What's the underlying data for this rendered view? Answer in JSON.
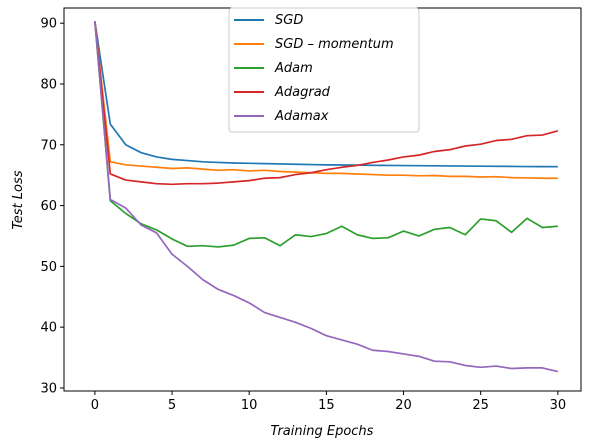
{
  "chart_data": {
    "type": "line",
    "xlabel": "Training Epochs",
    "ylabel": "Test Loss",
    "xlim": [
      -2,
      31.5
    ],
    "ylim": [
      29.5,
      92.5
    ],
    "xticks": [
      0,
      5,
      10,
      15,
      20,
      25,
      30
    ],
    "yticks": [
      30,
      40,
      50,
      60,
      70,
      80,
      90
    ],
    "grid": false,
    "legend_position": "top-center",
    "x": [
      0,
      1,
      2,
      3,
      4,
      5,
      6,
      7,
      8,
      9,
      10,
      11,
      12,
      13,
      14,
      15,
      16,
      17,
      18,
      19,
      20,
      21,
      22,
      23,
      24,
      25,
      26,
      27,
      28,
      29,
      30
    ],
    "series": [
      {
        "name": "SGD",
        "color": "#1f77b4",
        "values": [
          90.3,
          73.4,
          70.0,
          68.7,
          68.0,
          67.6,
          67.4,
          67.2,
          67.1,
          67.0,
          66.95,
          66.9,
          66.85,
          66.8,
          66.75,
          66.7,
          66.68,
          66.65,
          66.62,
          66.6,
          66.58,
          66.56,
          66.54,
          66.52,
          66.5,
          66.48,
          66.46,
          66.44,
          66.42,
          66.41,
          66.4
        ]
      },
      {
        "name": "SGD – momentum",
        "color": "#ff7f0e",
        "values": [
          90.3,
          67.2,
          66.7,
          66.5,
          66.3,
          66.1,
          66.2,
          66.0,
          65.8,
          65.9,
          65.7,
          65.8,
          65.6,
          65.5,
          65.4,
          65.3,
          65.3,
          65.2,
          65.1,
          65.0,
          65.0,
          64.9,
          64.95,
          64.8,
          64.8,
          64.7,
          64.75,
          64.6,
          64.55,
          64.5,
          64.5
        ]
      },
      {
        "name": "Adam",
        "color": "#2ca02c",
        "values": [
          90.3,
          60.8,
          58.7,
          57.0,
          56.0,
          54.5,
          53.3,
          53.4,
          53.2,
          53.5,
          54.6,
          54.7,
          53.4,
          55.2,
          54.9,
          55.4,
          56.6,
          55.2,
          54.6,
          54.7,
          55.8,
          55.0,
          56.1,
          56.4,
          55.2,
          57.8,
          57.5,
          55.6,
          57.9,
          56.4,
          56.6
        ]
      },
      {
        "name": "Adagrad",
        "color": "#d62728",
        "values": [
          90.3,
          65.2,
          64.2,
          63.9,
          63.6,
          63.5,
          63.6,
          63.6,
          63.7,
          63.9,
          64.1,
          64.5,
          64.6,
          65.1,
          65.4,
          65.9,
          66.3,
          66.6,
          67.1,
          67.5,
          68.0,
          68.3,
          68.9,
          69.2,
          69.8,
          70.1,
          70.7,
          70.9,
          71.5,
          71.6,
          72.3
        ]
      },
      {
        "name": "Adamax",
        "color": "#9467bd",
        "values": [
          90.3,
          61.0,
          59.6,
          56.8,
          55.5,
          52.0,
          50.0,
          47.8,
          46.2,
          45.2,
          44.0,
          42.4,
          41.6,
          40.8,
          39.8,
          38.6,
          37.9,
          37.2,
          36.2,
          36.0,
          35.6,
          35.2,
          34.4,
          34.3,
          33.7,
          33.4,
          33.6,
          33.2,
          33.3,
          33.3,
          32.7
        ]
      }
    ]
  },
  "legend": {
    "items": [
      {
        "label": "SGD",
        "color": "#1f77b4"
      },
      {
        "label": "SGD – momentum",
        "color": "#ff7f0e"
      },
      {
        "label": "Adam",
        "color": "#2ca02c"
      },
      {
        "label": "Adagrad",
        "color": "#d62728"
      },
      {
        "label": "Adamax",
        "color": "#9467bd"
      }
    ]
  }
}
